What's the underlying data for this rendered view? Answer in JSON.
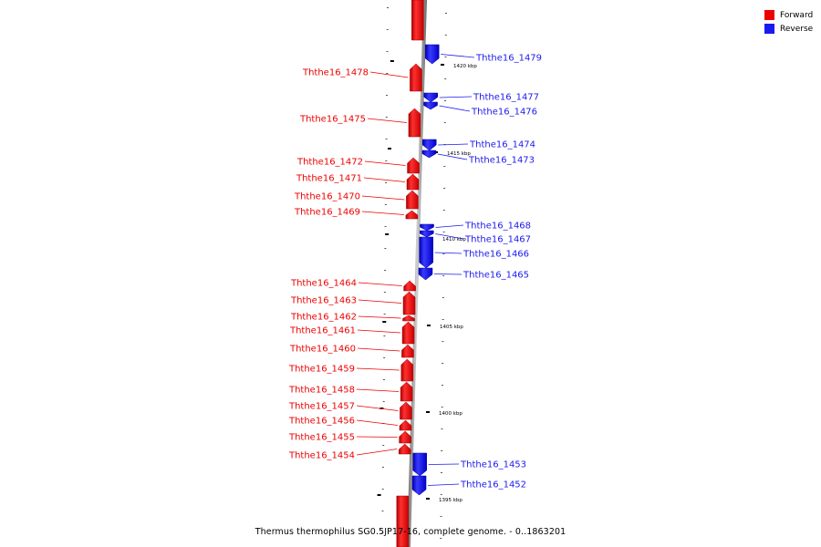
{
  "colors": {
    "forward": "#ee0000",
    "reverse": "#1a1aee",
    "axis": "#8a8a8a"
  },
  "legend": [
    {
      "label": "Forward",
      "color": "#ee0000"
    },
    {
      "label": "Reverse",
      "color": "#1a1aee"
    }
  ],
  "caption": "Thermus thermophilus SG0.5JP17-16, complete genome. - 0..1863201",
  "scale_labels": [
    "1420 kbp",
    "1415 kbp",
    "1410 kbp",
    "1405 kbp",
    "1400 kbp",
    "1395 kbp"
  ],
  "genes": [
    {
      "name": "Ththe16_1479",
      "strand": "reverse"
    },
    {
      "name": "Ththe16_1478",
      "strand": "forward"
    },
    {
      "name": "Ththe16_1477",
      "strand": "reverse"
    },
    {
      "name": "Ththe16_1476",
      "strand": "reverse"
    },
    {
      "name": "Ththe16_1475",
      "strand": "forward"
    },
    {
      "name": "Ththe16_1474",
      "strand": "reverse"
    },
    {
      "name": "Ththe16_1473",
      "strand": "reverse"
    },
    {
      "name": "Ththe16_1472",
      "strand": "forward"
    },
    {
      "name": "Ththe16_1471",
      "strand": "forward"
    },
    {
      "name": "Ththe16_1470",
      "strand": "forward"
    },
    {
      "name": "Ththe16_1469",
      "strand": "forward"
    },
    {
      "name": "Ththe16_1468",
      "strand": "reverse"
    },
    {
      "name": "Ththe16_1467",
      "strand": "reverse"
    },
    {
      "name": "Ththe16_1466",
      "strand": "reverse"
    },
    {
      "name": "Ththe16_1465",
      "strand": "reverse"
    },
    {
      "name": "Ththe16_1464",
      "strand": "forward"
    },
    {
      "name": "Ththe16_1463",
      "strand": "forward"
    },
    {
      "name": "Ththe16_1462",
      "strand": "forward"
    },
    {
      "name": "Ththe16_1461",
      "strand": "forward"
    },
    {
      "name": "Ththe16_1460",
      "strand": "forward"
    },
    {
      "name": "Ththe16_1459",
      "strand": "forward"
    },
    {
      "name": "Ththe16_1458",
      "strand": "forward"
    },
    {
      "name": "Ththe16_1457",
      "strand": "forward"
    },
    {
      "name": "Ththe16_1456",
      "strand": "forward"
    },
    {
      "name": "Ththe16_1455",
      "strand": "forward"
    },
    {
      "name": "Ththe16_1454",
      "strand": "forward"
    },
    {
      "name": "Ththe16_1453",
      "strand": "reverse"
    },
    {
      "name": "Ththe16_1452",
      "strand": "reverse"
    }
  ]
}
